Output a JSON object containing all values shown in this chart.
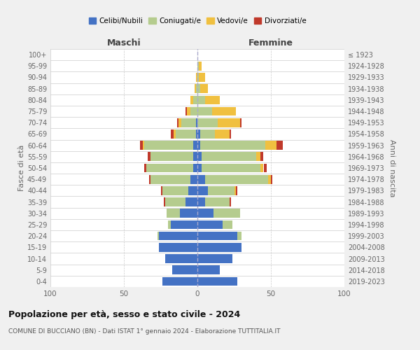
{
  "age_groups": [
    "0-4",
    "5-9",
    "10-14",
    "15-19",
    "20-24",
    "25-29",
    "30-34",
    "35-39",
    "40-44",
    "45-49",
    "50-54",
    "55-59",
    "60-64",
    "65-69",
    "70-74",
    "75-79",
    "80-84",
    "85-89",
    "90-94",
    "95-99",
    "100+"
  ],
  "birth_years": [
    "2019-2023",
    "2014-2018",
    "2009-2013",
    "2004-2008",
    "1999-2003",
    "1994-1998",
    "1989-1993",
    "1984-1988",
    "1979-1983",
    "1974-1978",
    "1969-1973",
    "1964-1968",
    "1959-1963",
    "1954-1958",
    "1949-1953",
    "1944-1948",
    "1939-1943",
    "1934-1938",
    "1929-1933",
    "1924-1928",
    "≤ 1923"
  ],
  "maschi": {
    "celibi": [
      24,
      17,
      22,
      26,
      26,
      18,
      12,
      8,
      6,
      5,
      3,
      3,
      3,
      1,
      1,
      0,
      0,
      0,
      0,
      0,
      0
    ],
    "coniugati": [
      0,
      0,
      0,
      0,
      1,
      2,
      9,
      14,
      18,
      27,
      32,
      29,
      33,
      14,
      10,
      5,
      3,
      1,
      0,
      0,
      0
    ],
    "vedovi": [
      0,
      0,
      0,
      0,
      0,
      0,
      0,
      0,
      0,
      0,
      0,
      0,
      1,
      1,
      2,
      2,
      2,
      1,
      1,
      0,
      0
    ],
    "divorziati": [
      0,
      0,
      0,
      0,
      0,
      0,
      0,
      1,
      1,
      1,
      1,
      2,
      2,
      2,
      1,
      1,
      0,
      0,
      0,
      0,
      0
    ]
  },
  "femmine": {
    "nubili": [
      27,
      15,
      24,
      30,
      27,
      17,
      11,
      5,
      7,
      5,
      3,
      3,
      2,
      2,
      0,
      0,
      0,
      0,
      0,
      0,
      0
    ],
    "coniugate": [
      0,
      0,
      0,
      0,
      3,
      7,
      18,
      17,
      18,
      43,
      40,
      37,
      44,
      10,
      14,
      10,
      5,
      2,
      1,
      1,
      0
    ],
    "vedove": [
      0,
      0,
      0,
      0,
      0,
      0,
      0,
      0,
      1,
      2,
      2,
      3,
      8,
      10,
      15,
      16,
      10,
      5,
      4,
      2,
      0
    ],
    "divorziate": [
      0,
      0,
      0,
      0,
      0,
      0,
      0,
      1,
      1,
      1,
      2,
      2,
      4,
      1,
      1,
      0,
      0,
      0,
      0,
      0,
      0
    ]
  },
  "colors": {
    "celibi_nubili": "#4472C4",
    "coniugati": "#B5CC8E",
    "vedovi": "#F0C040",
    "divorziati": "#C0392B"
  },
  "xlim": 100,
  "title": "Popolazione per età, sesso e stato civile - 2024",
  "subtitle": "COMUNE DI BUCCIANO (BN) - Dati ISTAT 1° gennaio 2024 - Elaborazione TUTTITALIA.IT",
  "ylabel_left": "Fasce di età",
  "ylabel_right": "Anni di nascita",
  "xlabel_maschi": "Maschi",
  "xlabel_femmine": "Femmine",
  "bg_color": "#f0f0f0",
  "plot_bg_color": "#ffffff",
  "legend_labels": [
    "Celibi/Nubili",
    "Coniugati/e",
    "Vedovi/e",
    "Divorziati/e"
  ]
}
